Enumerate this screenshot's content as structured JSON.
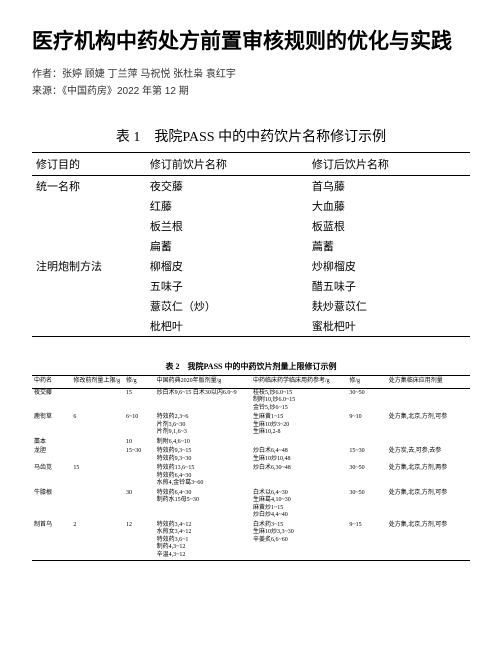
{
  "header": {
    "title": "医疗机构中药处方前置审核规则的优化与实践",
    "authors_label": "作者：",
    "authors": "张婷 顾婕 丁兰萍 马祝悦 张杜枭 袁红宇",
    "source_label": "来源：",
    "source": "《中国药房》2022 年第 12 期"
  },
  "table1": {
    "caption": "表 1　我院PASS 中的中药饮片名称修订示例",
    "columns": [
      "修订目的",
      "修订前饮片名称",
      "修订后饮片名称"
    ],
    "groups": [
      {
        "purpose": "统一名称",
        "rows": [
          [
            "夜交藤",
            "首乌藤"
          ],
          [
            "红藤",
            "大血藤"
          ],
          [
            "板兰根",
            "板蓝根"
          ],
          [
            "扁蓄",
            "萹蓄"
          ]
        ]
      },
      {
        "purpose": "注明炮制方法",
        "rows": [
          [
            "柳榴皮",
            "炒柳榴皮"
          ],
          [
            "五味子",
            "醋五味子"
          ],
          [
            "薏苡仁（炒）",
            "麸炒薏苡仁"
          ],
          [
            "枇杷叶",
            "蜜枇杷叶"
          ]
        ]
      }
    ]
  },
  "table2": {
    "caption": "表 2　我院PASS 中的中药饮片剂量上限修订示例",
    "columns": [
      "中药名",
      "修改前剂量上限/g",
      "修/g",
      "中国药典2020年版剂量/g",
      "中药临床药学临床用药参考/g",
      "修/g",
      "处方集临床应用剂量"
    ],
    "rows": [
      [
        "夜交藤",
        "",
        "15",
        "炒白术9,6~15 白术30以内6.0~9",
        "桂枝5,炒6.0~15<br>制附10,炒6.0~15<br>金铃5,炒6~15",
        "30~50",
        ""
      ],
      [
        "鹿衔草",
        "6",
        "6~10",
        "特效药2,3~6<br>片剂3,6~30<br>片剂9,1,6~3",
        "生麻黄1~15<br>生麻10炒3~20<br>生麻10,2-8",
        "9~10",
        "处方集,北京,方剂,可参"
      ],
      [
        "藁本",
        "",
        "10",
        "制附6,4,6~10",
        "",
        "",
        ""
      ],
      [
        "龙胆",
        "",
        "15~30",
        "特效药9,3~15<br>特效药9,3~30",
        "炒白术6,4~48<br>生麻10炒10,48",
        "15~30",
        "处方炭,去,可参,去参"
      ],
      [
        "马齿苋",
        "15",
        "",
        "特效药13,6~15<br>特效药6,4~30<br>水煎4,金铃葛3~60",
        "炒白术6,30~48",
        "30~50",
        "处方集,北京,方剂,两参"
      ],
      [
        "牛膝根",
        "",
        "30",
        "特效药6,4~30<br>制药水15母5~30",
        "白术以6,4~30<br>生麻葛4,10~30<br>麻黄炒1~15<br>炒白炒4,4~40",
        "30~50",
        "处方集,北京,方剂,可参"
      ],
      [
        "制首乌",
        "2",
        "12",
        "特效药3,4~12<br>水煎女3,4~12<br>特效药3,6~1<br>制药4,3~12<br>辛温4,3~12",
        "白术药3~15<br>生麻10炒3,3~30<br>辛姜炙6,6~60",
        "9~15",
        "处方集,北京,方剂,可参"
      ]
    ]
  }
}
